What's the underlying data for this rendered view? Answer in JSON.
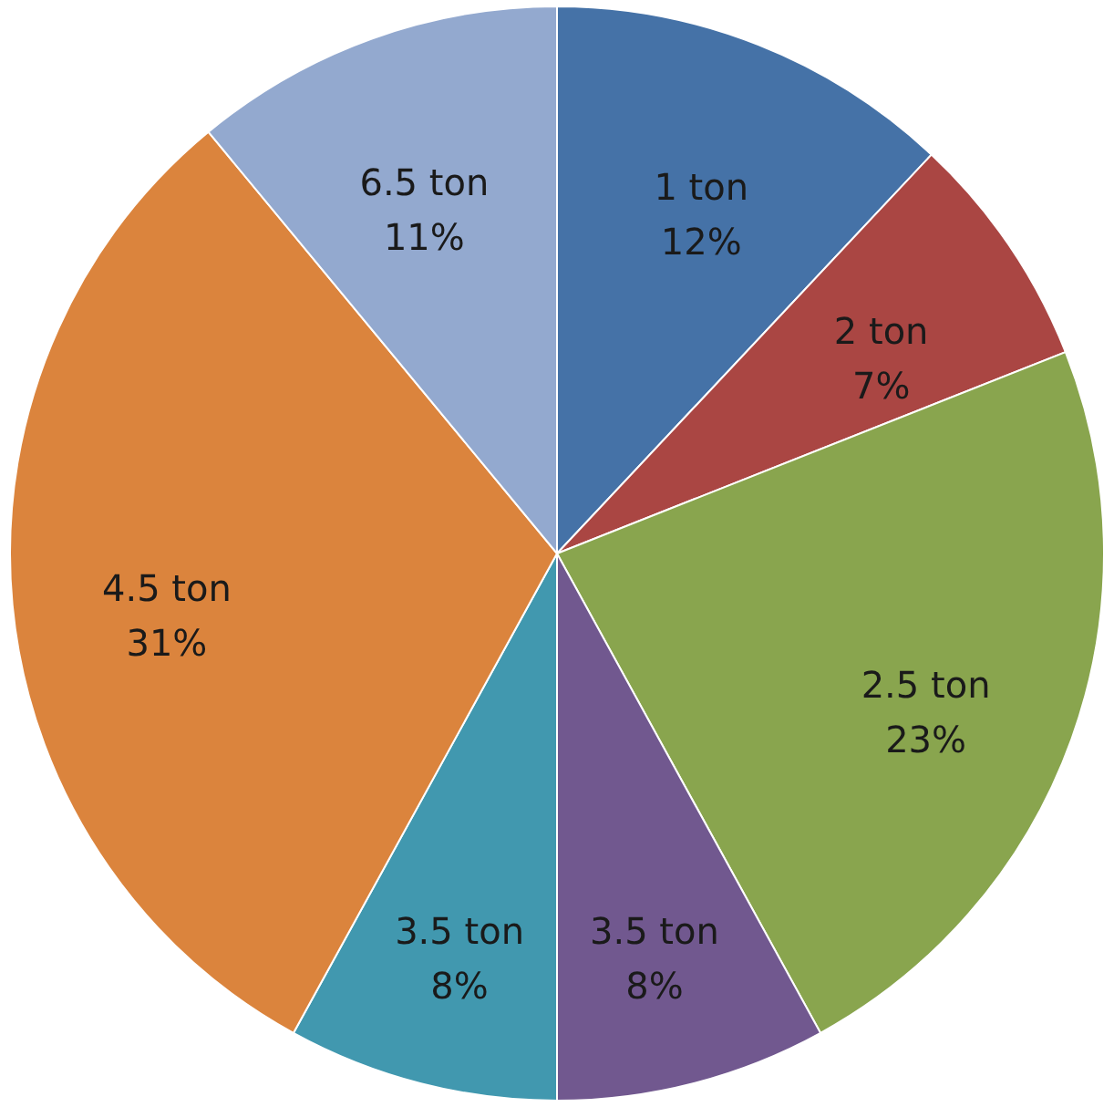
{
  "chart_data": {
    "type": "pie",
    "categories": [
      "1 ton",
      "2 ton",
      "2.5 ton",
      "3.5 ton",
      "3.5 ton",
      "4.5 ton",
      "6.5 ton"
    ],
    "values": [
      12,
      7,
      23,
      8,
      8,
      31,
      11
    ],
    "value_labels": [
      "12%",
      "7%",
      "23%",
      "8%",
      "8%",
      "31%",
      "11%"
    ],
    "colors": [
      "#4572a7",
      "#aa4643",
      "#89a54e",
      "#71588f",
      "#4198af",
      "#db843d",
      "#93a9cf"
    ]
  }
}
